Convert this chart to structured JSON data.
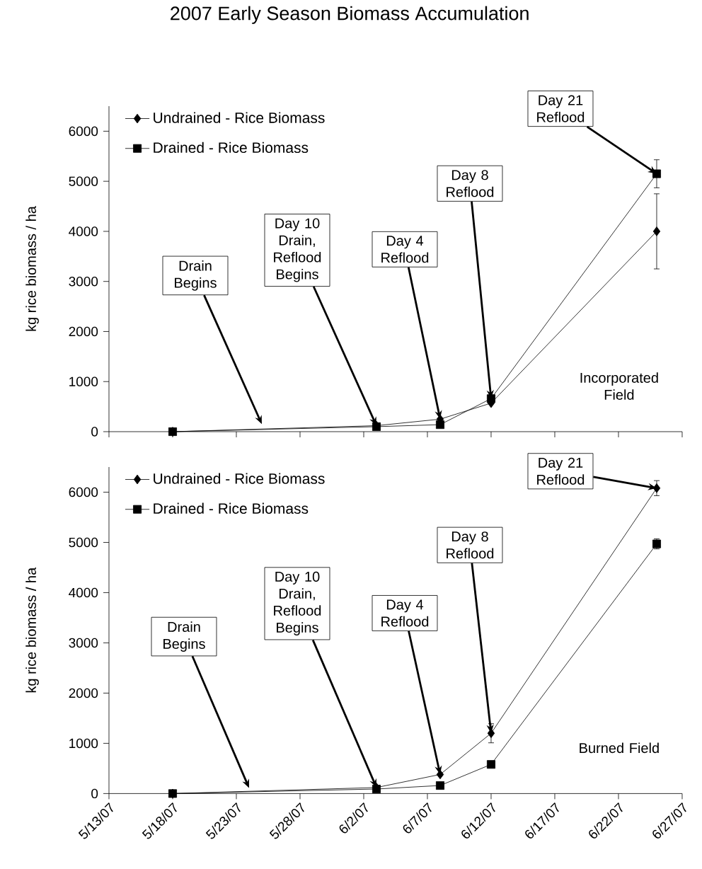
{
  "chart_data": [
    {
      "type": "line",
      "title": "2007 Early Season Biomass Accumulation",
      "ylabel": "kg rice biomass / ha",
      "x": [
        "2007-05-18",
        "2007-06-03",
        "2007-06-08",
        "2007-06-12",
        "2007-06-25"
      ],
      "series": [
        {
          "name": "Undrained - Rice Biomass",
          "color": "#000000",
          "marker": "diamond",
          "values": [
            0,
            120,
            250,
            570,
            4000
          ],
          "errors": [
            null,
            null,
            null,
            null,
            750
          ]
        },
        {
          "name": "Drained - Rice Biomass",
          "color": "#000000",
          "marker": "square",
          "values": [
            0,
            100,
            140,
            660,
            5150
          ],
          "errors": [
            null,
            null,
            null,
            null,
            280
          ]
        }
      ],
      "xlim": [
        "2007-05-13",
        "2007-06-27"
      ],
      "xticks": [
        {
          "value": "2007-05-13",
          "label": null
        },
        {
          "value": "2007-05-18",
          "label": null
        },
        {
          "value": "2007-05-23",
          "label": null
        },
        {
          "value": "2007-05-28",
          "label": null
        },
        {
          "value": "2007-06-02",
          "label": null
        },
        {
          "value": "2007-06-07",
          "label": null
        },
        {
          "value": "2007-06-12",
          "label": null
        },
        {
          "value": "2007-06-17",
          "label": null
        },
        {
          "value": "2007-06-22",
          "label": null
        },
        {
          "value": "2007-06-27",
          "label": null
        }
      ],
      "ylim": [
        0,
        6500
      ],
      "yticks": [
        0,
        1000,
        2000,
        3000,
        4000,
        5000,
        6000
      ],
      "tick_labels": "y",
      "legend": "top left",
      "grid": false,
      "annotations": [
        {
          "text": "Drain Begins",
          "x": "2007-05-25",
          "y": 150
        },
        {
          "text": "Day 10 Drain, Reflood Begins",
          "x": "2007-06-03",
          "y": 120
        },
        {
          "text": "Day 4 Reflood",
          "x": "2007-06-08",
          "y": 250
        },
        {
          "text": "Day 8 Reflood",
          "x": "2007-06-12",
          "y": 660
        },
        {
          "text": "Day 21 Reflood",
          "x": "2007-06-25",
          "y": 5150
        },
        "Incorporated Field"
      ]
    },
    {
      "type": "line",
      "ylabel": "kg rice biomass / ha",
      "x": [
        "2007-05-18",
        "2007-06-03",
        "2007-06-08",
        "2007-06-12",
        "2007-06-25"
      ],
      "series": [
        {
          "name": "Undrained - Rice Biomass",
          "color": "#000000",
          "marker": "diamond",
          "values": [
            0,
            120,
            380,
            1200,
            6080
          ],
          "errors": [
            null,
            null,
            null,
            190,
            150
          ]
        },
        {
          "name": "Drained - Rice Biomass",
          "color": "#000000",
          "marker": "square",
          "values": [
            0,
            90,
            160,
            580,
            4970
          ],
          "errors": [
            null,
            null,
            null,
            null,
            100
          ]
        }
      ],
      "xlim": [
        "2007-05-13",
        "2007-06-27"
      ],
      "xticks": [
        {
          "value": "2007-05-13",
          "label": "5/13/07"
        },
        {
          "value": "2007-05-18",
          "label": "5/18/07"
        },
        {
          "value": "2007-05-23",
          "label": "5/23/07"
        },
        {
          "value": "2007-05-28",
          "label": "5/28/07"
        },
        {
          "value": "2007-06-02",
          "label": "6/2/07"
        },
        {
          "value": "2007-06-07",
          "label": "6/7/07"
        },
        {
          "value": "2007-06-12",
          "label": "6/12/07"
        },
        {
          "value": "2007-06-17",
          "label": "6/17/07"
        },
        {
          "value": "2007-06-22",
          "label": "6/22/07"
        },
        {
          "value": "2007-06-27",
          "label": "6/27/07"
        }
      ],
      "ylim": [
        0,
        6500
      ],
      "yticks": [
        0,
        1000,
        2000,
        3000,
        4000,
        5000,
        6000
      ],
      "legend": "top left",
      "grid": false,
      "annotations": [
        {
          "text": "Drain Begins",
          "x": "2007-05-24",
          "y": 110
        },
        {
          "text": "Day 10 Drain, Reflood Begins",
          "x": "2007-06-03",
          "y": 120
        },
        {
          "text": "Day 4 Reflood",
          "x": "2007-06-08",
          "y": 380
        },
        {
          "text": "Day 8 Reflood",
          "x": "2007-06-12",
          "y": 1200
        },
        {
          "text": "Day 21 Reflood",
          "x": "2007-06-25",
          "y": 6080
        },
        "Burned Field"
      ]
    }
  ]
}
